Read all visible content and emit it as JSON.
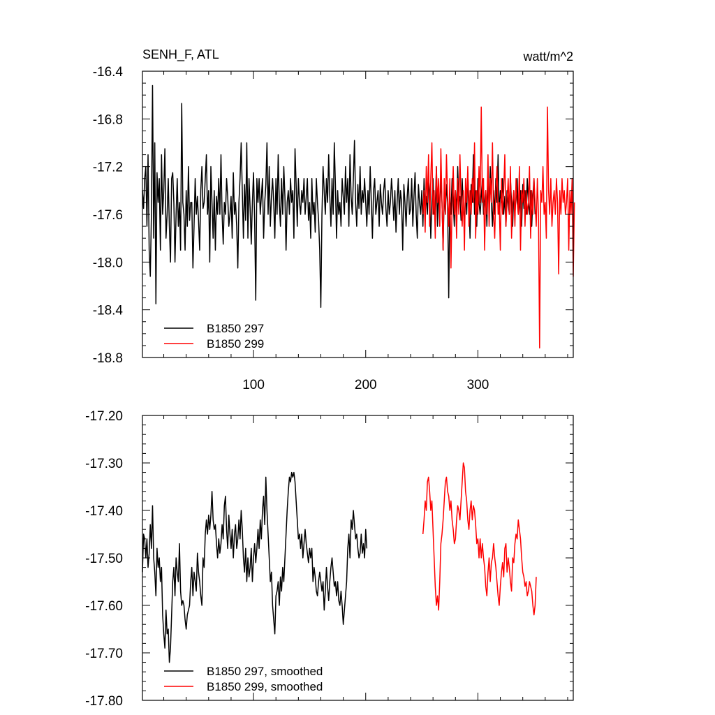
{
  "chart_data": [
    {
      "type": "line",
      "title_left": "SENH_F, ATL",
      "title_right": "watt/m^2",
      "xlim": [
        1,
        385
      ],
      "ylim": [
        -18.8,
        -16.4
      ],
      "xticks": [
        100,
        200,
        300
      ],
      "xtick_labels": [
        "100",
        "200",
        "300"
      ],
      "yticks": [
        -16.4,
        -16.8,
        -17.2,
        -17.6,
        -18.0,
        -18.4,
        -18.8
      ],
      "ytick_labels": [
        "-16.4",
        "-16.8",
        "-17.2",
        "-17.6",
        "-18.0",
        "-18.4",
        "-18.8"
      ],
      "legend_position": "bottom-left",
      "series": [
        {
          "name": "B1850 297",
          "color": "#000000",
          "x_start": 1,
          "values": [
            -17.4,
            -17.55,
            -17.3,
            -17.2,
            -17.7,
            -17.1,
            -17.9,
            -18.12,
            -17.6,
            -16.52,
            -17.8,
            -17.0,
            -18.35,
            -17.25,
            -17.5,
            -17.3,
            -17.9,
            -17.1,
            -17.6,
            -17.4,
            -17.05,
            -17.8,
            -17.6,
            -17.3,
            -17.7,
            -18.0,
            -17.3,
            -17.25,
            -17.5,
            -18.0,
            -17.6,
            -17.3,
            -17.7,
            -17.5,
            -17.9,
            -16.67,
            -17.5,
            -17.6,
            -17.9,
            -17.4,
            -17.7,
            -17.2,
            -17.65,
            -17.5,
            -17.5,
            -18.05,
            -17.7,
            -17.3,
            -17.6,
            -17.45,
            -17.65,
            -17.9,
            -17.4,
            -17.2,
            -17.55,
            -17.5,
            -17.3,
            -17.1,
            -17.6,
            -17.4,
            -18.0,
            -17.2,
            -17.5,
            -17.8,
            -17.4,
            -17.9,
            -17.45,
            -17.6,
            -17.3,
            -17.6,
            -17.1,
            -17.6,
            -17.85,
            -17.5,
            -17.6,
            -17.3,
            -17.45,
            -17.7,
            -17.6,
            -17.45,
            -17.8,
            -17.25,
            -17.6,
            -17.5,
            -17.7,
            -18.05,
            -17.5,
            -17.3,
            -17.0,
            -17.4,
            -17.8,
            -17.35,
            -17.65,
            -17.0,
            -17.8,
            -17.3,
            -17.55,
            -17.85,
            -17.5,
            -17.25,
            -17.65,
            -18.32,
            -17.3,
            -17.5,
            -17.3,
            -17.6,
            -17.45,
            -17.3,
            -17.8,
            -17.5,
            -17.35,
            -17.0,
            -17.6,
            -17.2,
            -17.7,
            -17.45,
            -17.3,
            -17.5,
            -17.8,
            -17.3,
            -17.6,
            -17.1,
            -17.5,
            -17.7,
            -17.3,
            -17.6,
            -17.2,
            -17.45,
            -17.9,
            -17.5,
            -17.4,
            -17.6,
            -17.3,
            -17.5,
            -17.4,
            -17.8,
            -17.05,
            -17.35,
            -17.7,
            -17.3,
            -17.5,
            -17.6,
            -17.4,
            -17.5,
            -17.3,
            -17.6,
            -17.45,
            -17.3,
            -17.65,
            -17.5,
            -17.8,
            -17.3,
            -17.6,
            -17.5,
            -17.75,
            -17.3,
            -17.5,
            -17.65,
            -17.9,
            -18.38,
            -17.6,
            -17.2,
            -17.4,
            -17.6,
            -17.3,
            -17.5,
            -17.1,
            -17.45,
            -17.7,
            -17.3,
            -17.6,
            -17.0,
            -17.35,
            -17.8,
            -17.4,
            -17.6,
            -17.5,
            -17.7,
            -17.3,
            -17.45,
            -17.6,
            -17.2,
            -17.5,
            -17.3,
            -17.7,
            -17.1,
            -17.45,
            -17.6,
            -17.3,
            -16.98,
            -17.5,
            -17.7,
            -17.35,
            -17.55,
            -17.2,
            -17.6,
            -17.4,
            -17.5,
            -17.3,
            -17.5,
            -17.7,
            -17.4,
            -17.6,
            -17.2,
            -17.5,
            -17.8,
            -17.4,
            -17.3,
            -17.6,
            -17.5,
            -17.4,
            -17.7,
            -17.35,
            -17.5,
            -17.6,
            -17.4,
            -17.3,
            -17.55,
            -17.7,
            -17.4,
            -17.6,
            -17.5,
            -17.3,
            -17.45,
            -17.65,
            -17.4,
            -17.75,
            -17.5,
            -17.3,
            -17.6,
            -17.4,
            -17.5,
            -17.9,
            -17.35,
            -17.5,
            -17.7,
            -17.45,
            -17.3,
            -17.6,
            -17.55,
            -17.3,
            -17.7,
            -17.45,
            -17.25,
            -17.6,
            -17.8,
            -17.35,
            -17.5,
            -17.6,
            -17.4,
            -17.7,
            -17.3,
            -17.55,
            -17.45,
            -17.6,
            -17.3,
            -17.4,
            -17.8,
            -17.5,
            -17.3,
            -17.6,
            -17.55,
            -17.2,
            -17.7,
            -17.4,
            -17.6,
            -17.3,
            -17.5,
            -17.9,
            -17.4,
            -17.6,
            -17.35,
            -17.5,
            -18.3,
            -17.45,
            -17.6,
            -17.3,
            -17.5,
            -17.7,
            -17.4,
            -17.6,
            -17.2,
            -17.5,
            -17.45,
            -17.65,
            -17.3,
            -17.55,
            -17.7,
            -17.4,
            -17.6,
            -17.25,
            -17.5,
            -17.8,
            -17.35,
            -17.5,
            -17.1,
            -17.6,
            -17.4,
            -17.7,
            -17.3,
            -17.5,
            -17.6,
            -17.45,
            -17.3,
            -17.6,
            -17.5,
            -17.4,
            -17.7,
            -17.3,
            -17.55,
            -17.2,
            -17.5,
            -17.7,
            -17.4,
            -17.6,
            -17.3,
            -17.5,
            -17.1,
            -17.6,
            -17.4,
            -17.5,
            -17.3,
            -17.6,
            -17.45,
            -17.7,
            -17.4,
            -17.5,
            -17.6,
            -17.3,
            -17.5,
            -17.7,
            -17.4,
            -17.6,
            -17.45,
            -17.3,
            -17.6,
            -17.5,
            -17.4,
            -17.7,
            -17.35,
            -17.55,
            -17.4,
            -17.6,
            -17.3,
            -17.5,
            -17.6,
            -17.4,
            -17.7,
            -17.45,
            -17.3,
            -17.6
          ]
        },
        {
          "name": "B1850 299",
          "color": "#ff0000",
          "x_start": 251,
          "values": [
            -17.6,
            -17.4,
            -17.75,
            -17.2,
            -17.5,
            -17.1,
            -17.7,
            -17.3,
            -17.0,
            -17.6,
            -17.4,
            -17.8,
            -17.2,
            -17.5,
            -17.3,
            -17.7,
            -17.05,
            -17.5,
            -17.9,
            -17.3,
            -17.6,
            -17.1,
            -17.45,
            -17.7,
            -17.3,
            -18.05,
            -17.5,
            -17.2,
            -17.6,
            -17.4,
            -17.8,
            -17.3,
            -17.6,
            -17.1,
            -17.5,
            -17.7,
            -17.4,
            -17.9,
            -17.3,
            -17.5,
            -17.2,
            -17.7,
            -17.4,
            -17.6,
            -17.3,
            -17.5,
            -17.0,
            -17.8,
            -17.4,
            -17.6,
            -17.2,
            -17.5,
            -16.7,
            -17.5,
            -17.3,
            -17.9,
            -17.4,
            -17.6,
            -17.1,
            -17.7,
            -17.3,
            -17.5,
            -17.0,
            -17.6,
            -17.8,
            -17.4,
            -17.2,
            -17.6,
            -17.5,
            -17.9,
            -17.3,
            -17.6,
            -17.4,
            -17.1,
            -17.7,
            -17.5,
            -17.3,
            -17.6,
            -17.2,
            -17.8,
            -17.5,
            -17.4,
            -17.7,
            -17.3,
            -17.5,
            -17.6,
            -17.2,
            -17.9,
            -17.4,
            -17.5,
            -17.3,
            -17.7,
            -17.4,
            -17.6,
            -17.5,
            -17.2,
            -17.8,
            -17.4,
            -17.6,
            -17.3,
            -17.5,
            -17.7,
            -17.3,
            -17.6,
            -18.72,
            -17.4,
            -17.5,
            -17.2,
            -17.6,
            -17.5,
            -17.8,
            -16.7,
            -17.4,
            -17.6,
            -17.3,
            -17.7,
            -17.5,
            -17.4,
            -17.6,
            -17.3,
            -17.5,
            -18.1,
            -17.4,
            -17.6,
            -17.3,
            -17.5,
            -17.4,
            -17.6,
            -17.5,
            -17.3,
            -17.9,
            -17.4,
            -17.6,
            -17.3,
            -18.12,
            -17.5
          ]
        }
      ]
    },
    {
      "type": "line",
      "xlim": [
        1,
        385
      ],
      "ylim": [
        -17.8,
        -17.2
      ],
      "yticks": [
        -17.2,
        -17.3,
        -17.4,
        -17.5,
        -17.6,
        -17.7,
        -17.8
      ],
      "ytick_labels": [
        "-17.20",
        "-17.30",
        "-17.40",
        "-17.50",
        "-17.60",
        "-17.70",
        "-17.80"
      ],
      "legend_position": "bottom-left",
      "series": [
        {
          "name": "B1850 297, smoothed",
          "color": "#000000",
          "x_start": 1,
          "values": [
            -17.53,
            -17.45,
            -17.46,
            -17.5,
            -17.46,
            -17.52,
            -17.49,
            -17.43,
            -17.48,
            -17.39,
            -17.5,
            -17.53,
            -17.58,
            -17.48,
            -17.52,
            -17.5,
            -17.55,
            -17.52,
            -17.62,
            -17.66,
            -17.69,
            -17.61,
            -17.66,
            -17.65,
            -17.72,
            -17.69,
            -17.62,
            -17.55,
            -17.52,
            -17.58,
            -17.5,
            -17.53,
            -17.55,
            -17.47,
            -17.57,
            -17.6,
            -17.59,
            -17.6,
            -17.63,
            -17.65,
            -17.62,
            -17.61,
            -17.6,
            -17.55,
            -17.52,
            -17.58,
            -17.53,
            -17.55,
            -17.57,
            -17.49,
            -17.53,
            -17.55,
            -17.58,
            -17.6,
            -17.5,
            -17.52,
            -17.45,
            -17.42,
            -17.45,
            -17.41,
            -17.44,
            -17.41,
            -17.36,
            -17.42,
            -17.44,
            -17.43,
            -17.47,
            -17.5,
            -17.46,
            -17.49,
            -17.47,
            -17.43,
            -17.46,
            -17.39,
            -17.37,
            -17.44,
            -17.48,
            -17.41,
            -17.45,
            -17.48,
            -17.44,
            -17.5,
            -17.45,
            -17.43,
            -17.48,
            -17.46,
            -17.42,
            -17.46,
            -17.4,
            -17.44,
            -17.5,
            -17.53,
            -17.48,
            -17.55,
            -17.5,
            -17.54,
            -17.52,
            -17.48,
            -17.55,
            -17.5,
            -17.47,
            -17.51,
            -17.48,
            -17.44,
            -17.48,
            -17.42,
            -17.46,
            -17.4,
            -17.37,
            -17.43,
            -17.33,
            -17.4,
            -17.45,
            -17.5,
            -17.55,
            -17.53,
            -17.6,
            -17.63,
            -17.66,
            -17.58,
            -17.57,
            -17.55,
            -17.6,
            -17.54,
            -17.57,
            -17.52,
            -17.55,
            -17.5,
            -17.45,
            -17.4,
            -17.36,
            -17.33,
            -17.34,
            -17.32,
            -17.33,
            -17.32,
            -17.34,
            -17.38,
            -17.42,
            -17.46,
            -17.45,
            -17.48,
            -17.45,
            -17.5,
            -17.47,
            -17.44,
            -17.47,
            -17.49,
            -17.51,
            -17.48,
            -17.5,
            -17.48,
            -17.55,
            -17.52,
            -17.54,
            -17.57,
            -17.58,
            -17.55,
            -17.53,
            -17.55,
            -17.57,
            -17.55,
            -17.61,
            -17.57,
            -17.52,
            -17.56,
            -17.59,
            -17.55,
            -17.52,
            -17.5,
            -17.53,
            -17.56,
            -17.55,
            -17.58,
            -17.55,
            -17.59,
            -17.6,
            -17.57,
            -17.6,
            -17.64,
            -17.61,
            -17.58,
            -17.55,
            -17.48,
            -17.45,
            -17.5,
            -17.42,
            -17.44,
            -17.4,
            -17.43,
            -17.46,
            -17.45,
            -17.48,
            -17.5,
            -17.49,
            -17.45,
            -17.49,
            -17.47,
            -17.5,
            -17.44,
            -17.48
          ]
        },
        {
          "name": "B1850 299, smoothed",
          "color": "#ff0000",
          "x_start": 251,
          "values": [
            -17.45,
            -17.42,
            -17.38,
            -17.4,
            -17.34,
            -17.33,
            -17.36,
            -17.4,
            -17.38,
            -17.44,
            -17.5,
            -17.56,
            -17.6,
            -17.58,
            -17.61,
            -17.55,
            -17.47,
            -17.45,
            -17.42,
            -17.38,
            -17.34,
            -17.33,
            -17.36,
            -17.37,
            -17.4,
            -17.38,
            -17.42,
            -17.44,
            -17.47,
            -17.46,
            -17.42,
            -17.39,
            -17.4,
            -17.42,
            -17.38,
            -17.34,
            -17.3,
            -17.31,
            -17.36,
            -17.38,
            -17.42,
            -17.44,
            -17.4,
            -17.38,
            -17.42,
            -17.39,
            -17.4,
            -17.43,
            -17.47,
            -17.46,
            -17.5,
            -17.46,
            -17.5,
            -17.47,
            -17.5,
            -17.52,
            -17.56,
            -17.58,
            -17.53,
            -17.5,
            -17.55,
            -17.51,
            -17.5,
            -17.47,
            -17.5,
            -17.52,
            -17.55,
            -17.58,
            -17.6,
            -17.56,
            -17.53,
            -17.51,
            -17.54,
            -17.48,
            -17.47,
            -17.53,
            -17.5,
            -17.52,
            -17.55,
            -17.57,
            -17.5,
            -17.51,
            -17.47,
            -17.45,
            -17.46,
            -17.42,
            -17.44,
            -17.46,
            -17.5,
            -17.53,
            -17.54,
            -17.56,
            -17.55,
            -17.58,
            -17.57,
            -17.55,
            -17.56,
            -17.57,
            -17.6,
            -17.62,
            -17.6,
            -17.54
          ]
        }
      ]
    }
  ]
}
